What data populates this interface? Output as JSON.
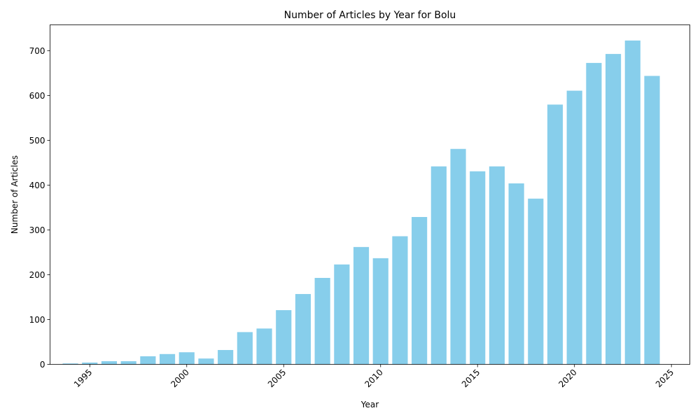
{
  "chart_data": {
    "type": "bar",
    "title": "Number of Articles by Year for Bolu",
    "xlabel": "Year",
    "ylabel": "Number of Articles",
    "x": [
      1994,
      1995,
      1996,
      1997,
      1998,
      1999,
      2000,
      2001,
      2002,
      2003,
      2004,
      2005,
      2006,
      2007,
      2008,
      2009,
      2010,
      2011,
      2012,
      2013,
      2014,
      2015,
      2016,
      2017,
      2018,
      2019,
      2020,
      2021,
      2022,
      2023,
      2024
    ],
    "values": [
      2,
      4,
      7,
      7,
      18,
      23,
      27,
      13,
      32,
      72,
      80,
      121,
      157,
      193,
      223,
      262,
      237,
      286,
      329,
      442,
      481,
      431,
      442,
      404,
      370,
      580,
      611,
      673,
      693,
      723,
      644
    ],
    "xlim": [
      1992.95,
      2025.95
    ],
    "ylim": [
      0,
      758
    ],
    "x_ticks": [
      1995,
      2000,
      2005,
      2010,
      2015,
      2020,
      2025
    ],
    "y_ticks": [
      0,
      100,
      200,
      300,
      400,
      500,
      600,
      700
    ],
    "x_tick_rotation": 45,
    "bar_color": "#87CEEB",
    "grid": false,
    "legend": false
  }
}
